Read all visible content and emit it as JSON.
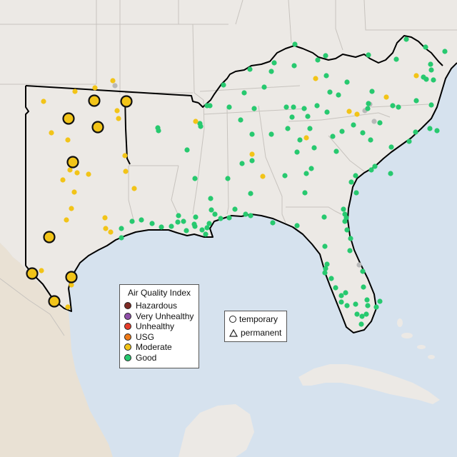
{
  "colors": {
    "ocean": "#d6e2ee",
    "land": "#ece9e5",
    "land_south": "#e9e1d4",
    "border": "#c7c3be",
    "outline": "#000000",
    "Hazardous": "#7e2b24",
    "Very Unhealthy": "#8f4fa8",
    "Unhealthy": "#e53d2a",
    "USG": "#ee7a18",
    "Moderate": "#f2c418",
    "Good": "#27c96f",
    "No data": "#b8b8b8"
  },
  "legend": {
    "title": "Air Quality Index",
    "categories": [
      {
        "label": "Hazardous",
        "color": "#7e2b24"
      },
      {
        "label": "Very Unhealthy",
        "color": "#8f4fa8"
      },
      {
        "label": "Unhealthy",
        "color": "#e53d2a"
      },
      {
        "label": "USG",
        "color": "#ee7a18"
      },
      {
        "label": "Moderate",
        "color": "#f2c418"
      },
      {
        "label": "Good",
        "color": "#27c96f"
      }
    ]
  },
  "monitor_type_legend": {
    "temporary": "temporary",
    "permanent": "permanent"
  },
  "monitors": {
    "permanent_moderate": [
      [
        132,
        141
      ],
      [
        177,
        142
      ],
      [
        96,
        166
      ],
      [
        137,
        178
      ],
      [
        102,
        227
      ],
      [
        69,
        332
      ],
      [
        45,
        383
      ],
      [
        100,
        388
      ],
      [
        76,
        422
      ]
    ],
    "moderate": [
      [
        61,
        142
      ],
      [
        105,
        128
      ],
      [
        133,
        123
      ],
      [
        164,
        155
      ],
      [
        166,
        166
      ],
      [
        158,
        113
      ],
      [
        72,
        186
      ],
      [
        95,
        196
      ],
      [
        175,
        218
      ],
      [
        98,
        238
      ],
      [
        108,
        242
      ],
      [
        124,
        244
      ],
      [
        88,
        252
      ],
      [
        176,
        240
      ],
      [
        104,
        269
      ],
      [
        93,
        308
      ],
      [
        100,
        292
      ],
      [
        147,
        305
      ],
      [
        148,
        320
      ],
      [
        155,
        325
      ],
      [
        188,
        264
      ],
      [
        58,
        379
      ],
      [
        95,
        430
      ],
      [
        100,
        399
      ],
      [
        274,
        170
      ],
      [
        353,
        216
      ],
      [
        368,
        247
      ],
      [
        442,
        110
      ],
      [
        429,
        193
      ],
      [
        489,
        156
      ],
      [
        500,
        160
      ],
      [
        541,
        136
      ],
      [
        583,
        106
      ]
    ],
    "good": [
      [
        413,
        62
      ],
      [
        456,
        78
      ],
      [
        384,
        88
      ],
      [
        380,
        100
      ],
      [
        412,
        92
      ],
      [
        445,
        84
      ],
      [
        516,
        77
      ],
      [
        555,
        83
      ],
      [
        569,
        55
      ],
      [
        596,
        66
      ],
      [
        623,
        72
      ],
      [
        313,
        119
      ],
      [
        350,
        97
      ],
      [
        342,
        130
      ],
      [
        356,
        152
      ],
      [
        370,
        122
      ],
      [
        321,
        150
      ],
      [
        411,
        150
      ],
      [
        401,
        150
      ],
      [
        426,
        152
      ],
      [
        431,
        163
      ],
      [
        409,
        164
      ],
      [
        434,
        180
      ],
      [
        444,
        148
      ],
      [
        458,
        157
      ],
      [
        462,
        129
      ],
      [
        457,
        106
      ],
      [
        486,
        115
      ],
      [
        474,
        133
      ],
      [
        521,
        128
      ],
      [
        550,
        148
      ],
      [
        558,
        150
      ],
      [
        516,
        145
      ],
      [
        515,
        152
      ],
      [
        583,
        141
      ],
      [
        604,
        147
      ],
      [
        532,
        172
      ],
      [
        508,
        186
      ],
      [
        495,
        175
      ],
      [
        479,
        184
      ],
      [
        466,
        191
      ],
      [
        471,
        212
      ],
      [
        416,
        213
      ],
      [
        440,
        207
      ],
      [
        403,
        180
      ],
      [
        420,
        196
      ],
      [
        380,
        188
      ],
      [
        353,
        188
      ],
      [
        337,
        168
      ],
      [
        290,
        148
      ],
      [
        294,
        148
      ],
      [
        280,
        173
      ],
      [
        222,
        183
      ],
      [
        221,
        179
      ],
      [
        281,
        177
      ],
      [
        262,
        210
      ],
      [
        353,
        225
      ],
      [
        339,
        229
      ],
      [
        351,
        271
      ],
      [
        319,
        250
      ],
      [
        273,
        250
      ],
      [
        295,
        278
      ],
      [
        296,
        294
      ],
      [
        329,
        293
      ],
      [
        321,
        305
      ],
      [
        344,
        300
      ],
      [
        351,
        302
      ],
      [
        382,
        312
      ],
      [
        399,
        246
      ],
      [
        429,
        243
      ],
      [
        436,
        236
      ],
      [
        427,
        270
      ],
      [
        416,
        316
      ],
      [
        454,
        304
      ],
      [
        455,
        345
      ],
      [
        483,
        310
      ],
      [
        483,
        300
      ],
      [
        481,
        293
      ],
      [
        485,
        305
      ],
      [
        486,
        322
      ],
      [
        491,
        334
      ],
      [
        490,
        351
      ],
      [
        492,
        255
      ],
      [
        498,
        246
      ],
      [
        499,
        270
      ],
      [
        520,
        238
      ],
      [
        525,
        233
      ],
      [
        547,
        243
      ],
      [
        573,
        198
      ],
      [
        548,
        206
      ],
      [
        519,
        196
      ],
      [
        582,
        185
      ],
      [
        602,
        180
      ],
      [
        612,
        183
      ],
      [
        593,
        108
      ],
      [
        597,
        111
      ],
      [
        607,
        112
      ],
      [
        604,
        98
      ],
      [
        603,
        90
      ],
      [
        250,
        302
      ],
      [
        249,
        311
      ],
      [
        257,
        310
      ],
      [
        261,
        323
      ],
      [
        272,
        314
      ],
      [
        274,
        304
      ],
      [
        273,
        317
      ],
      [
        283,
        322
      ],
      [
        288,
        328
      ],
      [
        290,
        319
      ],
      [
        293,
        313
      ],
      [
        301,
        300
      ],
      [
        309,
        306
      ],
      [
        185,
        310
      ],
      [
        170,
        320
      ],
      [
        170,
        333
      ],
      [
        198,
        308
      ],
      [
        213,
        313
      ],
      [
        226,
        318
      ],
      [
        240,
        317
      ],
      [
        458,
        370
      ],
      [
        455,
        382
      ],
      [
        456,
        376
      ],
      [
        464,
        390
      ],
      [
        508,
        380
      ],
      [
        509,
        402
      ],
      [
        514,
        420
      ],
      [
        515,
        428
      ],
      [
        513,
        440
      ],
      [
        507,
        443
      ],
      [
        527,
        430
      ],
      [
        532,
        422
      ],
      [
        498,
        426
      ],
      [
        500,
        440
      ],
      [
        506,
        454
      ],
      [
        484,
        410
      ],
      [
        478,
        414
      ],
      [
        478,
        423
      ],
      [
        486,
        428
      ],
      [
        470,
        403
      ]
    ],
    "nodata": [
      [
        524,
        170
      ],
      [
        518,
        146
      ],
      [
        161,
        120
      ],
      [
        511,
        155
      ],
      [
        503,
        371
      ]
    ]
  }
}
